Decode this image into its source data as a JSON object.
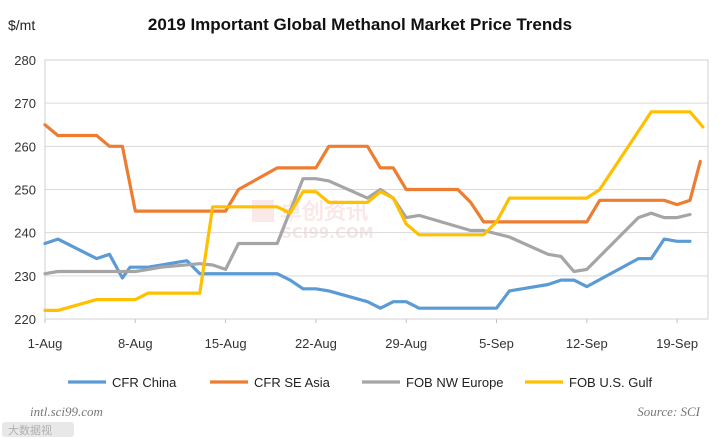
{
  "chart_data": {
    "type": "line",
    "title": "2019 Important Global Methanol Market Price Trends",
    "ylabel": "$/mt",
    "xlabel": "",
    "ylim": [
      220,
      280
    ],
    "yticks": [
      220,
      230,
      240,
      250,
      260,
      270,
      280
    ],
    "xlim": [
      1,
      51
    ],
    "xticks": [
      {
        "day": 1,
        "label": "1-Aug"
      },
      {
        "day": 8,
        "label": "8-Aug"
      },
      {
        "day": 15,
        "label": "15-Aug"
      },
      {
        "day": 22,
        "label": "22-Aug"
      },
      {
        "day": 29,
        "label": "29-Aug"
      },
      {
        "day": 36,
        "label": "5-Sep"
      },
      {
        "day": 43,
        "label": "12-Sep"
      },
      {
        "day": 50,
        "label": "19-Sep"
      }
    ],
    "x_unit": "day index starting 1-Aug",
    "grid": "horizontal",
    "legend_position": "bottom",
    "series": [
      {
        "name": "CFR China",
        "color": "#5b9bd5",
        "points": [
          [
            1,
            237.5
          ],
          [
            2,
            238.5
          ],
          [
            5,
            234
          ],
          [
            6,
            235
          ],
          [
            7,
            229.5
          ],
          [
            7.6,
            232
          ],
          [
            9,
            232
          ],
          [
            12,
            233.5
          ],
          [
            13,
            230.5
          ],
          [
            19,
            230.5
          ],
          [
            20,
            229
          ],
          [
            21,
            227
          ],
          [
            22,
            227
          ],
          [
            23,
            226.5
          ],
          [
            26,
            224
          ],
          [
            27,
            222.5
          ],
          [
            28,
            224
          ],
          [
            29,
            224
          ],
          [
            30,
            222.5
          ],
          [
            36,
            222.5
          ],
          [
            37,
            226.5
          ],
          [
            40,
            228
          ],
          [
            41,
            229
          ],
          [
            42,
            229
          ],
          [
            43,
            227.5
          ],
          [
            47,
            234
          ],
          [
            48,
            234
          ],
          [
            49,
            238.5
          ],
          [
            50,
            238
          ],
          [
            51,
            238
          ]
        ]
      },
      {
        "name": "CFR SE Asia",
        "color": "#ed7d31",
        "points": [
          [
            1,
            265
          ],
          [
            2,
            262.5
          ],
          [
            5,
            262.5
          ],
          [
            6,
            260
          ],
          [
            7,
            260
          ],
          [
            8,
            245
          ],
          [
            14,
            245
          ],
          [
            15,
            245
          ],
          [
            16,
            250
          ],
          [
            19,
            255
          ],
          [
            22,
            255
          ],
          [
            23,
            260
          ],
          [
            26,
            260
          ],
          [
            27,
            255
          ],
          [
            28,
            255
          ],
          [
            29,
            250
          ],
          [
            33,
            250
          ],
          [
            34,
            247
          ],
          [
            35,
            242.5
          ],
          [
            43,
            242.5
          ],
          [
            44,
            247.5
          ],
          [
            49,
            247.5
          ],
          [
            50,
            246.5
          ],
          [
            51,
            247.5
          ],
          [
            51.8,
            256.5
          ]
        ]
      },
      {
        "name": "FOB NW Europe",
        "color": "#a5a5a5",
        "points": [
          [
            1,
            230.5
          ],
          [
            2,
            231
          ],
          [
            8,
            231
          ],
          [
            9,
            231.5
          ],
          [
            10,
            232
          ],
          [
            13,
            232.8
          ],
          [
            14,
            232.5
          ],
          [
            15,
            231.5
          ],
          [
            16,
            237.5
          ],
          [
            19,
            237.5
          ],
          [
            21,
            252.5
          ],
          [
            22,
            252.5
          ],
          [
            23,
            252
          ],
          [
            26,
            248
          ],
          [
            27,
            250
          ],
          [
            28,
            248
          ],
          [
            29,
            243.5
          ],
          [
            30,
            244
          ],
          [
            34,
            240.5
          ],
          [
            35,
            240.5
          ],
          [
            37,
            239
          ],
          [
            40,
            235
          ],
          [
            41,
            234.5
          ],
          [
            42,
            231
          ],
          [
            43,
            231.5
          ],
          [
            47,
            243.5
          ],
          [
            48,
            244.5
          ],
          [
            49,
            243.5
          ],
          [
            50,
            243.5
          ],
          [
            51,
            244.2
          ]
        ]
      },
      {
        "name": "FOB U.S. Gulf",
        "color": "#ffc000",
        "points": [
          [
            1,
            222
          ],
          [
            2,
            222
          ],
          [
            5,
            224.5
          ],
          [
            8,
            224.5
          ],
          [
            9,
            226
          ],
          [
            13,
            226
          ],
          [
            14,
            246
          ],
          [
            19,
            246
          ],
          [
            20,
            244.5
          ],
          [
            21,
            249.5
          ],
          [
            22,
            249.5
          ],
          [
            23,
            247
          ],
          [
            26,
            247
          ],
          [
            27,
            249.5
          ],
          [
            28,
            248
          ],
          [
            29,
            242
          ],
          [
            30,
            239.5
          ],
          [
            35,
            239.5
          ],
          [
            36,
            242.5
          ],
          [
            37,
            248
          ],
          [
            43,
            248
          ],
          [
            44,
            250
          ],
          [
            48,
            268
          ],
          [
            51,
            268
          ],
          [
            52,
            264.5
          ]
        ]
      }
    ]
  },
  "footer": {
    "website": "intl.sci99.com",
    "source": "Source: SCI",
    "watermark_cn": "卓创资讯",
    "watermark_en": "SCI99.COM",
    "badge": "大数据视"
  }
}
